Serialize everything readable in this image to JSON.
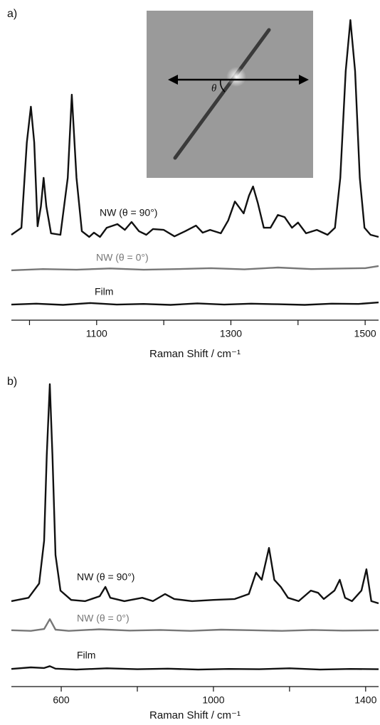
{
  "chart_data": [
    {
      "type": "line",
      "panel_label": "a)",
      "xlabel": "Raman Shift / cm⁻¹",
      "inset_annotation": "θ",
      "xlim": [
        973,
        1520
      ],
      "xticks": [
        1100,
        1300,
        1500
      ],
      "xticks_minor": [
        1000,
        1200,
        1400
      ],
      "ylim": [
        0,
        100
      ],
      "series": [
        {
          "name": "NW (θ = 90°)",
          "color": "#111111",
          "x": [
            973,
            988,
            996,
            1002,
            1007,
            1012,
            1017,
            1021,
            1025,
            1032,
            1046,
            1057,
            1063,
            1070,
            1078,
            1089,
            1096,
            1105,
            1115,
            1131,
            1142,
            1152,
            1163,
            1174,
            1184,
            1200,
            1216,
            1232,
            1248,
            1258,
            1269,
            1285,
            1296,
            1306,
            1319,
            1327,
            1333,
            1340,
            1349,
            1359,
            1370,
            1380,
            1391,
            1400,
            1412,
            1428,
            1444,
            1455,
            1463,
            1471,
            1478,
            1485,
            1492,
            1499,
            1508,
            1520
          ],
          "values": [
            27.9,
            30.2,
            58.1,
            69.8,
            58.1,
            30.7,
            37.2,
            46.5,
            37.2,
            28.4,
            27.9,
            46.5,
            73.7,
            46.5,
            29.1,
            27.2,
            28.6,
            27.2,
            30.2,
            31.4,
            29.5,
            32.1,
            29.1,
            27.9,
            29.8,
            29.5,
            27.4,
            29.1,
            30.9,
            28.6,
            29.5,
            28.4,
            32.6,
            38.8,
            34.9,
            40.7,
            43.7,
            38.4,
            30.2,
            30.2,
            34.4,
            33.7,
            30.2,
            31.9,
            28.4,
            29.5,
            27.9,
            30.2,
            46.5,
            81.4,
            98.1,
            81.4,
            46.5,
            30.2,
            27.9,
            27.2
          ]
        },
        {
          "name": "NW (θ = 0°)",
          "color": "#777777",
          "x": [
            973,
            1020,
            1070,
            1120,
            1170,
            1220,
            1270,
            1320,
            1370,
            1420,
            1470,
            1500,
            1520
          ],
          "values": [
            16.3,
            16.7,
            16.5,
            16.9,
            16.5,
            16.7,
            17.0,
            16.6,
            17.2,
            16.7,
            16.9,
            17.0,
            17.7
          ]
        },
        {
          "name": "Film",
          "color": "#111111",
          "x": [
            973,
            1010,
            1050,
            1090,
            1130,
            1170,
            1210,
            1250,
            1290,
            1330,
            1370,
            1410,
            1450,
            1490,
            1520
          ],
          "values": [
            5.1,
            5.4,
            5.0,
            5.6,
            5.1,
            5.3,
            5.0,
            5.5,
            5.1,
            5.4,
            5.2,
            5.0,
            5.4,
            5.3,
            5.8
          ]
        }
      ]
    },
    {
      "type": "line",
      "panel_label": "b)",
      "xlabel": "Raman Shift / cm⁻¹",
      "xlim": [
        469,
        1434
      ],
      "xticks": [
        600,
        1000,
        1400
      ],
      "xticks_minor": [
        800,
        1200
      ],
      "ylim": [
        0,
        100
      ],
      "series": [
        {
          "name": "NW (θ = 90°)",
          "color": "#111111",
          "x": [
            469,
            514,
            542,
            555,
            562,
            570,
            577,
            585,
            598,
            626,
            663,
            701,
            716,
            729,
            766,
            813,
            841,
            873,
            897,
            944,
            1000,
            1056,
            1093,
            1112,
            1127,
            1146,
            1160,
            1177,
            1196,
            1224,
            1256,
            1275,
            1290,
            1318,
            1332,
            1346,
            1364,
            1389,
            1402,
            1415,
            1434
          ],
          "values": [
            27.6,
            28.7,
            33.3,
            47.1,
            74.7,
            97.7,
            74.7,
            42.5,
            31.0,
            28.0,
            27.6,
            29.2,
            32.2,
            28.7,
            27.6,
            28.7,
            27.6,
            29.9,
            28.3,
            27.6,
            28.0,
            28.3,
            29.9,
            36.8,
            34.5,
            44.8,
            34.5,
            32.2,
            28.7,
            27.6,
            31.0,
            30.3,
            28.3,
            31.0,
            34.5,
            28.7,
            27.6,
            31.0,
            37.9,
            27.6,
            26.9
          ]
        },
        {
          "name": "NW (θ = 0°)",
          "color": "#777777",
          "x": [
            469,
            520,
            555,
            570,
            585,
            620,
            700,
            780,
            860,
            940,
            1020,
            1100,
            1180,
            1260,
            1340,
            1434
          ],
          "values": [
            18.2,
            18.0,
            18.6,
            21.8,
            18.4,
            18.0,
            18.5,
            18.1,
            18.3,
            18.0,
            18.4,
            18.2,
            18.0,
            18.3,
            18.1,
            18.2
          ]
        },
        {
          "name": "Film",
          "color": "#111111",
          "x": [
            469,
            520,
            555,
            570,
            585,
            640,
            720,
            800,
            880,
            960,
            1040,
            1120,
            1200,
            1280,
            1360,
            1434
          ],
          "values": [
            5.7,
            6.2,
            6.0,
            6.6,
            5.8,
            5.5,
            5.9,
            5.6,
            5.8,
            5.5,
            5.7,
            5.6,
            5.9,
            5.5,
            5.7,
            5.6
          ]
        }
      ]
    }
  ]
}
